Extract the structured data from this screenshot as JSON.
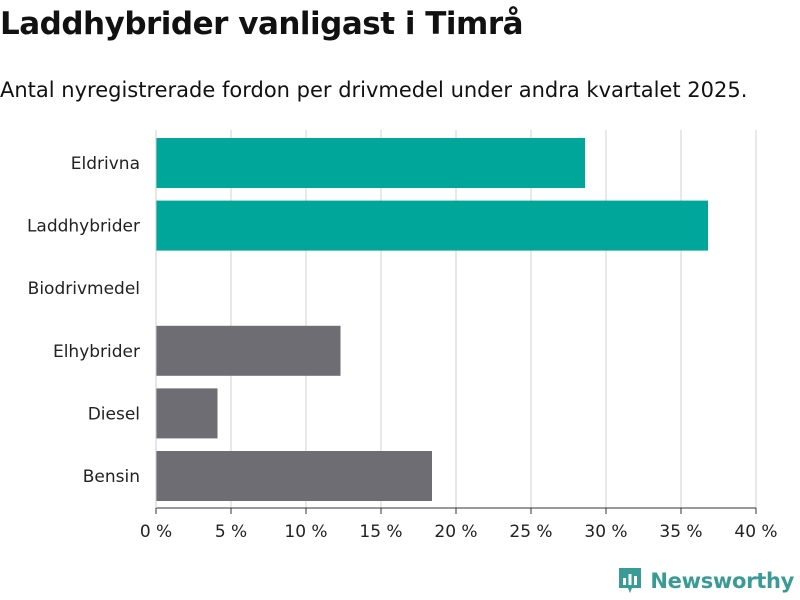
{
  "header": {
    "title": "Laddhybrider vanligast i Timrå",
    "subtitle": "Antal nyregistrerade fordon per drivmedel under andra kvartalet 2025."
  },
  "brand": {
    "name": "Newsworthy",
    "icon": "newsworthy-logo-icon",
    "color": "#3a9b96"
  },
  "colors": {
    "highlight": "#00a699",
    "other": "#6e6d74",
    "grid": "#d9d9d9",
    "axis": "#333333"
  },
  "chart_data": {
    "type": "bar",
    "orientation": "horizontal",
    "categories": [
      "Eldrivna",
      "Laddhybrider",
      "Biodrivmedel",
      "Elhybrider",
      "Diesel",
      "Bensin"
    ],
    "values": [
      28.6,
      36.8,
      0,
      12.3,
      4.1,
      18.4
    ],
    "bar_colors": [
      "#00a699",
      "#00a699",
      "#6e6d74",
      "#6e6d74",
      "#6e6d74",
      "#6e6d74"
    ],
    "xlim": [
      0,
      40
    ],
    "ticks": [
      0,
      5,
      10,
      15,
      20,
      25,
      30,
      35,
      40
    ],
    "tick_labels": [
      "0 %",
      "5 %",
      "10 %",
      "15 %",
      "20 %",
      "25 %",
      "30 %",
      "35 %",
      "40 %"
    ],
    "grid": true,
    "legend": "none"
  }
}
